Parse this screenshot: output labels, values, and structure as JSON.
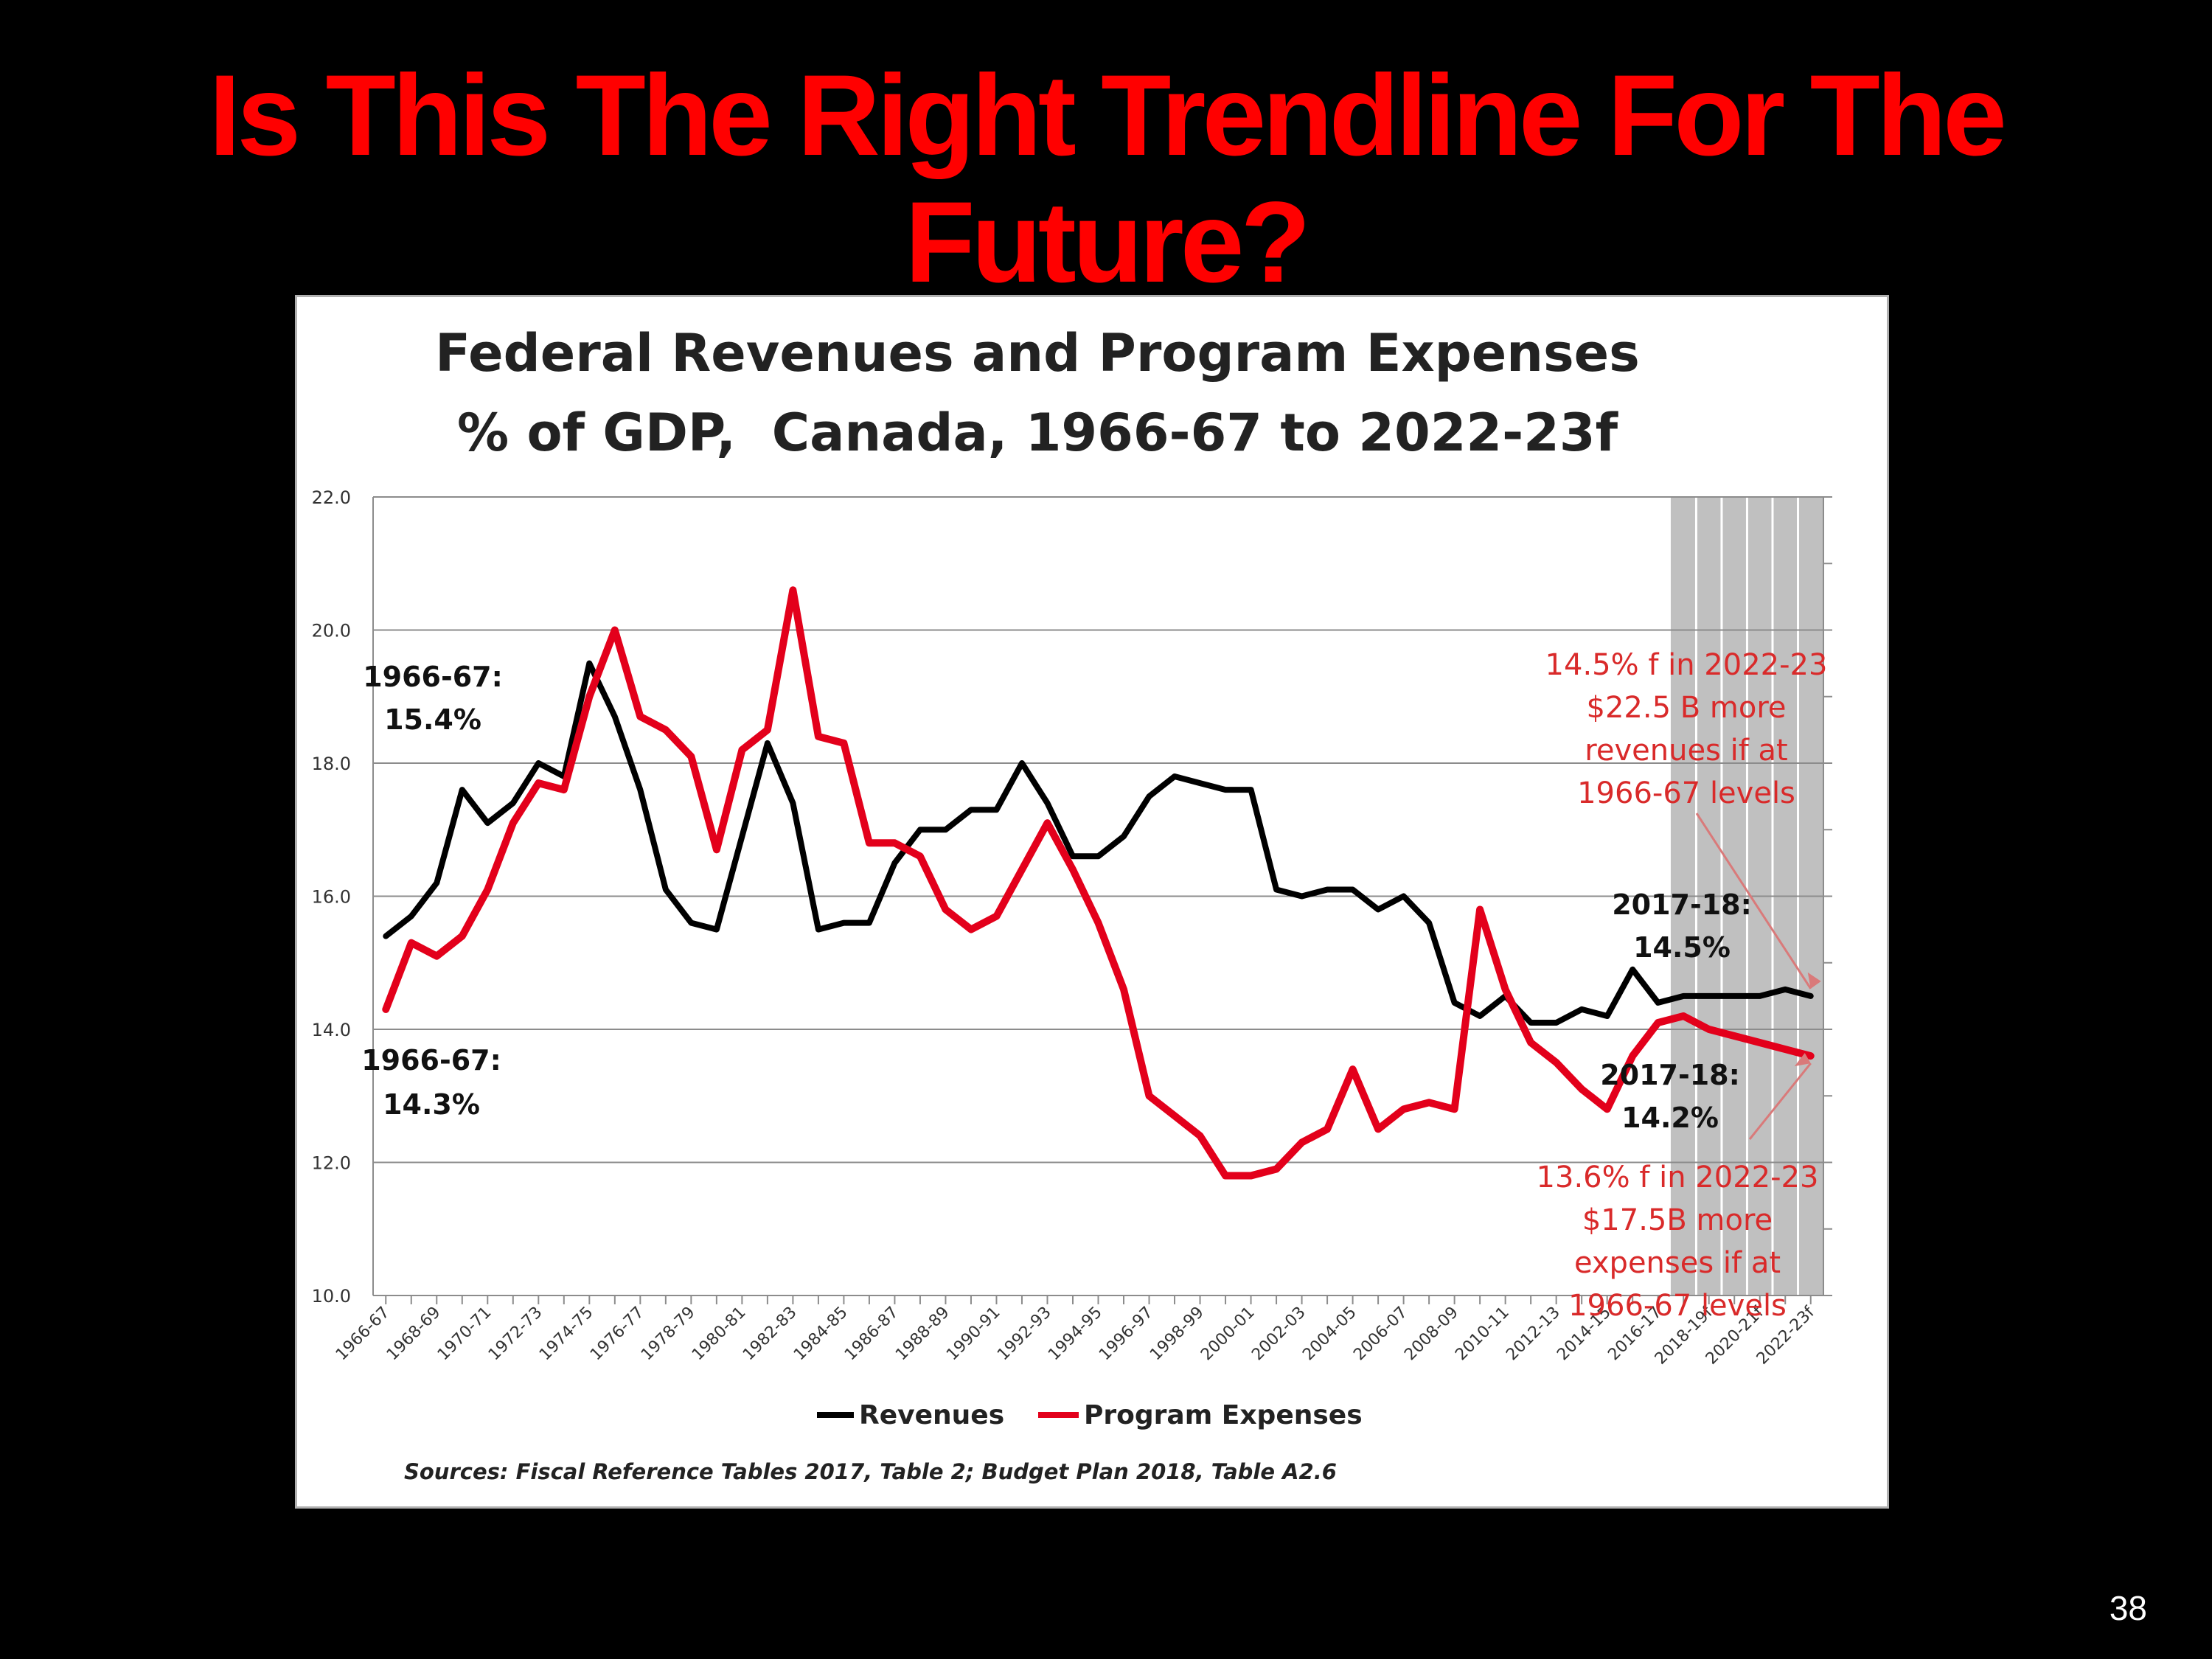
{
  "slide": {
    "title": "Is This The Right Trendline For The Future?",
    "page_number": "38"
  },
  "chart_data": {
    "type": "line",
    "title": "Federal Revenues and Program Expenses",
    "subtitle": "% of GDP,  Canada, 1966-67 to 2022-23f",
    "xlabel": "",
    "ylabel": "",
    "ylim": [
      10,
      22
    ],
    "yticks": [
      "10.0",
      "12.0",
      "14.0",
      "16.0",
      "18.0",
      "20.0",
      "22.0"
    ],
    "grid": true,
    "legend_position": "bottom",
    "x": [
      "1966-67",
      "1967-68",
      "1968-69",
      "1969-70",
      "1970-71",
      "1971-72",
      "1972-73",
      "1973-74",
      "1974-75",
      "1975-76",
      "1976-77",
      "1977-78",
      "1978-79",
      "1979-80",
      "1980-81",
      "1981-82",
      "1982-83",
      "1983-84",
      "1984-85",
      "1985-86",
      "1986-87",
      "1987-88",
      "1988-89",
      "1989-90",
      "1990-91",
      "1991-92",
      "1992-93",
      "1993-94",
      "1994-95",
      "1995-96",
      "1996-97",
      "1997-98",
      "1998-99",
      "1999-00",
      "2000-01",
      "2001-02",
      "2002-03",
      "2003-04",
      "2004-05",
      "2005-06",
      "2006-07",
      "2007-08",
      "2008-09",
      "2009-10",
      "2010-11",
      "2011-12",
      "2012-13",
      "2013-14",
      "2014-15",
      "2015-16",
      "2016-17",
      "2017-18",
      "2018-19f",
      "2019-20f",
      "2020-21f",
      "2021-22f",
      "2022-23f"
    ],
    "x_tick_labels": [
      "1966-67",
      "1968-69",
      "1970-71",
      "1972-73",
      "1974-75",
      "1976-77",
      "1978-79",
      "1980-81",
      "1982-83",
      "1984-85",
      "1986-87",
      "1988-89",
      "1990-91",
      "1992-93",
      "1994-95",
      "1996-97",
      "1998-99",
      "2000-01",
      "2002-03",
      "2004-05",
      "2006-07",
      "2008-09",
      "2010-11",
      "2012-13",
      "2014-15",
      "2016-17",
      "2018-19f",
      "2020-21f",
      "2022-23f"
    ],
    "forecast_shading": {
      "from": "2017-18",
      "to": "2022-23f",
      "color": "#c0c0c0"
    },
    "series": [
      {
        "name": "Revenues",
        "color": "#000000",
        "values": [
          15.4,
          15.7,
          16.2,
          17.6,
          17.1,
          17.4,
          18.0,
          17.8,
          19.5,
          18.7,
          17.6,
          16.1,
          15.6,
          15.5,
          16.9,
          18.3,
          17.4,
          15.5,
          15.6,
          15.6,
          16.5,
          17.0,
          17.0,
          17.3,
          17.3,
          18.0,
          17.4,
          16.6,
          16.6,
          16.9,
          17.5,
          17.8,
          17.7,
          17.6,
          17.6,
          16.1,
          16.0,
          16.1,
          16.1,
          15.8,
          16.0,
          15.6,
          14.4,
          14.2,
          14.5,
          14.1,
          14.1,
          14.3,
          14.2,
          14.9,
          14.4,
          14.5,
          14.5,
          14.5,
          14.5,
          14.6,
          14.5
        ]
      },
      {
        "name": "Program Expenses",
        "color": "#e3001b",
        "values": [
          14.3,
          15.3,
          15.1,
          15.4,
          16.1,
          17.1,
          17.7,
          17.6,
          19.0,
          20.0,
          18.7,
          18.5,
          18.1,
          16.7,
          18.2,
          18.5,
          20.6,
          18.4,
          18.3,
          16.8,
          16.8,
          16.6,
          15.8,
          15.5,
          15.7,
          16.4,
          17.1,
          16.4,
          15.6,
          14.6,
          13.0,
          12.7,
          12.4,
          11.8,
          11.8,
          11.9,
          12.3,
          12.5,
          13.4,
          12.5,
          12.8,
          12.9,
          12.8,
          15.8,
          14.6,
          13.8,
          13.5,
          13.1,
          12.8,
          13.6,
          14.1,
          14.2,
          14.0,
          13.9,
          13.8,
          13.7,
          13.6
        ]
      }
    ],
    "annotations": {
      "rev_start": [
        "1966-67:",
        "15.4%"
      ],
      "exp_start": [
        "1966-67:",
        "14.3%"
      ],
      "rev_2017": [
        "2017-18:",
        "14.5%"
      ],
      "exp_2017": [
        "2017-18:",
        "14.2%"
      ],
      "rev_forecast": [
        "14.5% f in 2022-23",
        "$22.5 B more",
        "revenues if at",
        "1966-67 levels"
      ],
      "exp_forecast": [
        "13.6% f in 2022-23",
        "$17.5B more",
        "expenses if at",
        "1966-67 levels"
      ]
    },
    "sources": "Sources: Fiscal Reference Tables 2017, Table 2; Budget Plan 2018, Table A2.6"
  }
}
